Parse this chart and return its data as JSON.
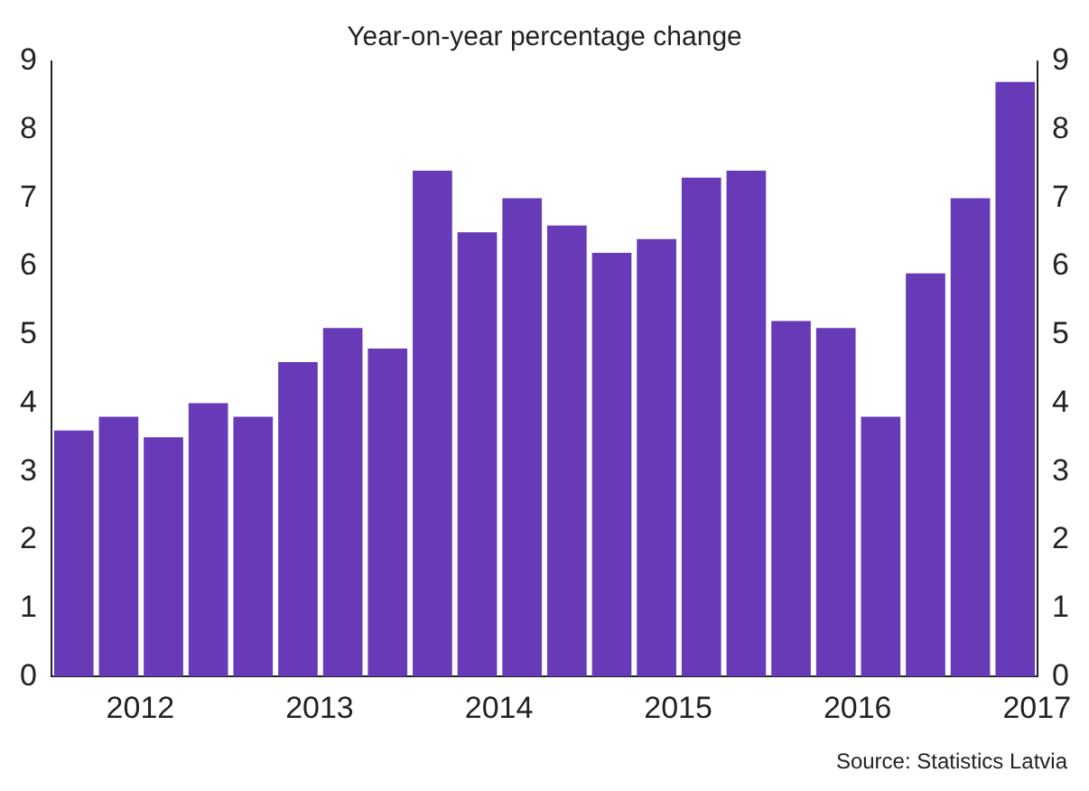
{
  "chart_data": {
    "type": "bar",
    "title": "Year-on-year percentage change",
    "categories": [
      null,
      "2012",
      null,
      null,
      null,
      "2013",
      null,
      null,
      null,
      "2014",
      null,
      null,
      null,
      "2015",
      null,
      null,
      null,
      "2016",
      null,
      null,
      null,
      "2017"
    ],
    "values": [
      3.6,
      3.8,
      3.5,
      4.0,
      3.8,
      4.6,
      5.1,
      4.8,
      7.4,
      6.5,
      7.0,
      6.6,
      6.2,
      6.4,
      7.3,
      7.4,
      5.2,
      5.1,
      3.8,
      5.9,
      7.0,
      8.7
    ],
    "color": "#673ab7",
    "ylim": [
      0,
      9
    ],
    "yticks": [
      0,
      1,
      2,
      3,
      4,
      5,
      6,
      7,
      8,
      9
    ],
    "y2lim": [
      0,
      9
    ],
    "y2ticks": [
      0,
      1,
      2,
      3,
      4,
      5,
      6,
      7,
      8,
      9
    ],
    "grid": false,
    "legend": false,
    "annotations": [
      "Source: Statistics Latvia"
    ]
  }
}
